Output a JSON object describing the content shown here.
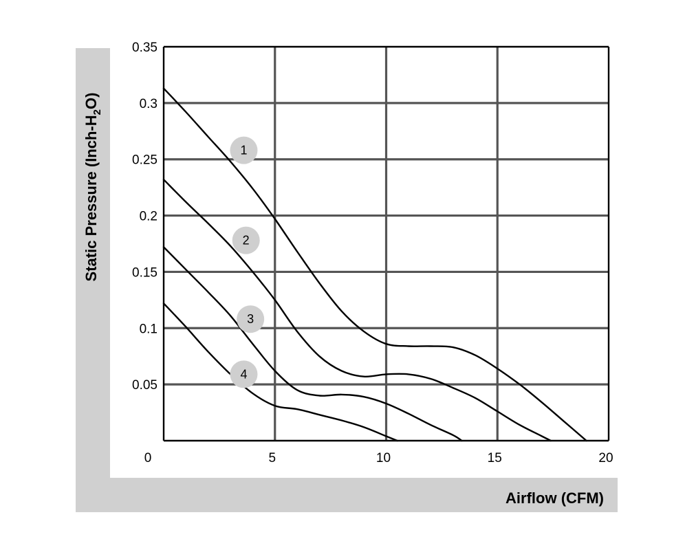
{
  "chart_data": {
    "type": "line",
    "xlabel": "Airflow (CFM)",
    "ylabel": {
      "main": "Static Pressure (Inch-H",
      "sub": "2",
      "tail": "O)"
    },
    "xlim": [
      0,
      20
    ],
    "ylim": [
      0,
      0.35
    ],
    "x_ticks": [
      "0",
      "5",
      "10",
      "15",
      "20"
    ],
    "y_ticks": [
      "0.05",
      "0.1",
      "0.15",
      "0.2",
      "0.25",
      "0.3",
      "0.35"
    ],
    "grid": true,
    "series": [
      {
        "name": "1",
        "points": [
          [
            0,
            0.313
          ],
          [
            1,
            0.292
          ],
          [
            2,
            0.27
          ],
          [
            3,
            0.248
          ],
          [
            4,
            0.224
          ],
          [
            5,
            0.197
          ],
          [
            6,
            0.168
          ],
          [
            7,
            0.14
          ],
          [
            8,
            0.115
          ],
          [
            9,
            0.097
          ],
          [
            10,
            0.086
          ],
          [
            11,
            0.084
          ],
          [
            12,
            0.084
          ],
          [
            13,
            0.083
          ],
          [
            14,
            0.076
          ],
          [
            15,
            0.064
          ],
          [
            16,
            0.05
          ],
          [
            17,
            0.034
          ],
          [
            18,
            0.017
          ],
          [
            19,
            0.0
          ]
        ]
      },
      {
        "name": "2",
        "points": [
          [
            0,
            0.232
          ],
          [
            1,
            0.212
          ],
          [
            2,
            0.193
          ],
          [
            3,
            0.173
          ],
          [
            4,
            0.15
          ],
          [
            5,
            0.125
          ],
          [
            6,
            0.097
          ],
          [
            7,
            0.075
          ],
          [
            8,
            0.062
          ],
          [
            9,
            0.057
          ],
          [
            10,
            0.059
          ],
          [
            11,
            0.059
          ],
          [
            12,
            0.055
          ],
          [
            13,
            0.047
          ],
          [
            14,
            0.038
          ],
          [
            15,
            0.026
          ],
          [
            16,
            0.014
          ],
          [
            17,
            0.004
          ],
          [
            17.4,
            0.0
          ]
        ]
      },
      {
        "name": "3",
        "points": [
          [
            0,
            0.172
          ],
          [
            1,
            0.152
          ],
          [
            2,
            0.132
          ],
          [
            3,
            0.111
          ],
          [
            4,
            0.086
          ],
          [
            5,
            0.062
          ],
          [
            6,
            0.045
          ],
          [
            7,
            0.04
          ],
          [
            8,
            0.041
          ],
          [
            9,
            0.039
          ],
          [
            10,
            0.033
          ],
          [
            11,
            0.024
          ],
          [
            12,
            0.014
          ],
          [
            13,
            0.005
          ],
          [
            13.4,
            0.0
          ]
        ]
      },
      {
        "name": "4",
        "points": [
          [
            0,
            0.122
          ],
          [
            1,
            0.101
          ],
          [
            2,
            0.079
          ],
          [
            3,
            0.059
          ],
          [
            4,
            0.042
          ],
          [
            5,
            0.031
          ],
          [
            6,
            0.028
          ],
          [
            7,
            0.023
          ],
          [
            8,
            0.018
          ],
          [
            9,
            0.012
          ],
          [
            10,
            0.004
          ],
          [
            10.5,
            0.0
          ]
        ]
      }
    ],
    "labels": [
      {
        "text": "1",
        "at": [
          3.6,
          0.258
        ]
      },
      {
        "text": "2",
        "at": [
          3.7,
          0.178
        ]
      },
      {
        "text": "3",
        "at": [
          3.9,
          0.108
        ]
      },
      {
        "text": "4",
        "at": [
          3.6,
          0.059
        ]
      }
    ]
  }
}
